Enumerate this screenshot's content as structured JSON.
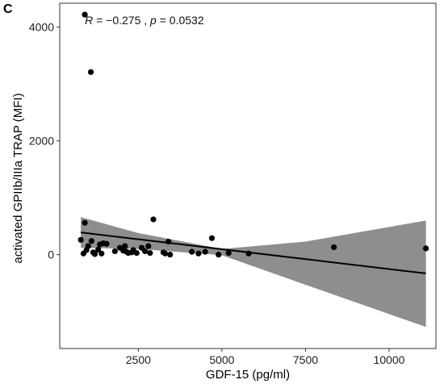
{
  "panel_label": "C",
  "chart_data": {
    "type": "scatter",
    "title": "",
    "xlabel": "GDF-15 (pg/ml)",
    "ylabel": "activated GPIIb/IIIa TRAP (MFI)",
    "xlim": [
      150,
      11400
    ],
    "ylim": [
      -1650,
      4420
    ],
    "xticks": [
      2500,
      5000,
      7500,
      10000
    ],
    "xtick_labels": [
      "2500",
      "5000",
      "7500",
      "10000"
    ],
    "yticks": [
      0,
      2000,
      4000
    ],
    "ytick_labels": [
      "0",
      "2000",
      "4000"
    ],
    "grid": false,
    "legend": "none",
    "annotation": {
      "r_symbol": "R",
      "r_text": " = −0.275 , ",
      "p_symbol": "p",
      "p_text": " = 0.0532",
      "x": 900,
      "y": 4050
    },
    "colors": {
      "points": "#000000",
      "line": "#000000",
      "band": "#888888"
    },
    "fit": {
      "x": [
        780,
        11100
      ],
      "y": [
        390,
        -330
      ],
      "band_upper": [
        [
          780,
          660
        ],
        [
          2500,
          380
        ],
        [
          5000,
          100
        ],
        [
          7500,
          230
        ],
        [
          11100,
          600
        ]
      ],
      "band_lower": [
        [
          780,
          120
        ],
        [
          2500,
          100
        ],
        [
          5000,
          -10
        ],
        [
          7500,
          -530
        ],
        [
          11100,
          -1270
        ]
      ]
    },
    "points": [
      {
        "x": 900,
        "y": 4220
      },
      {
        "x": 1080,
        "y": 3210
      },
      {
        "x": 2950,
        "y": 620
      },
      {
        "x": 900,
        "y": 560
      },
      {
        "x": 780,
        "y": 260
      },
      {
        "x": 4700,
        "y": 290
      },
      {
        "x": 8350,
        "y": 130
      },
      {
        "x": 11100,
        "y": 110
      },
      {
        "x": 860,
        "y": 20
      },
      {
        "x": 950,
        "y": 80
      },
      {
        "x": 1000,
        "y": 150
      },
      {
        "x": 1100,
        "y": 240
      },
      {
        "x": 1150,
        "y": 40
      },
      {
        "x": 1200,
        "y": 10
      },
      {
        "x": 1300,
        "y": 90
      },
      {
        "x": 1350,
        "y": 180
      },
      {
        "x": 1400,
        "y": 20
      },
      {
        "x": 1450,
        "y": 200
      },
      {
        "x": 1550,
        "y": 190
      },
      {
        "x": 1800,
        "y": 60
      },
      {
        "x": 1950,
        "y": 120
      },
      {
        "x": 2050,
        "y": 70
      },
      {
        "x": 2100,
        "y": 150
      },
      {
        "x": 2150,
        "y": 50
      },
      {
        "x": 2200,
        "y": 30
      },
      {
        "x": 2300,
        "y": 40
      },
      {
        "x": 2350,
        "y": 80
      },
      {
        "x": 2450,
        "y": 30
      },
      {
        "x": 2600,
        "y": 120
      },
      {
        "x": 2700,
        "y": 60
      },
      {
        "x": 2800,
        "y": 150
      },
      {
        "x": 2850,
        "y": 30
      },
      {
        "x": 3250,
        "y": 40
      },
      {
        "x": 3300,
        "y": 20
      },
      {
        "x": 3400,
        "y": 230
      },
      {
        "x": 3450,
        "y": 0
      },
      {
        "x": 4100,
        "y": 50
      },
      {
        "x": 4300,
        "y": 20
      },
      {
        "x": 4500,
        "y": 50
      },
      {
        "x": 4900,
        "y": 0
      },
      {
        "x": 5200,
        "y": 30
      },
      {
        "x": 5800,
        "y": 20
      }
    ]
  }
}
